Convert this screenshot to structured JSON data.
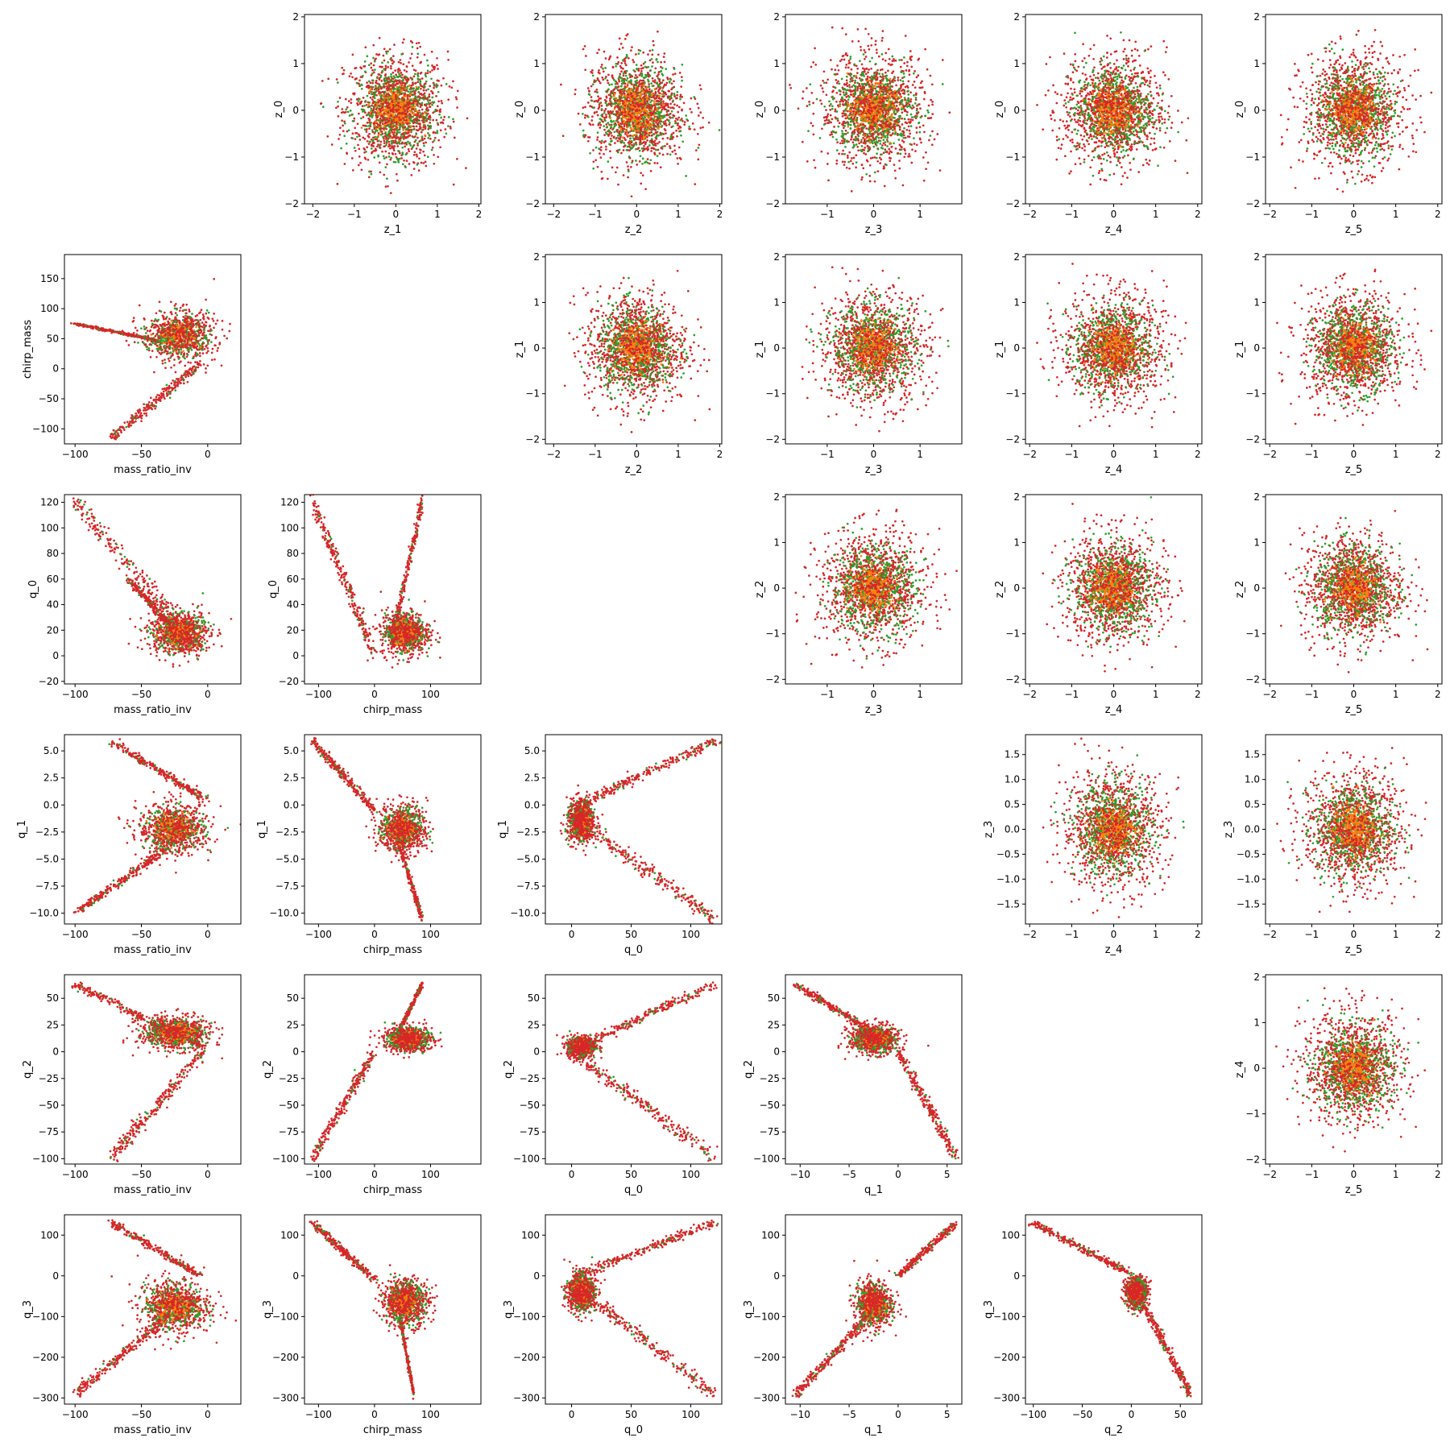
{
  "colors": {
    "red": "#d62728",
    "green": "#2ca02c",
    "orange": "#ff7f0e",
    "frame": "#000000"
  },
  "chart_data": [
    {
      "type": "scatter",
      "xlabel": "z_1",
      "ylabel": "z_0",
      "xticks": [
        "−2",
        "−1",
        "0",
        "1",
        "2"
      ],
      "yticks": [
        "−2",
        "−1",
        "0",
        "1",
        "2"
      ],
      "xlim": [
        -2.2,
        2.05
      ],
      "ylim": [
        -2.0,
        2.05
      ],
      "pattern": "gaussian",
      "spread": [
        0.62,
        0.62
      ],
      "series": [
        {
          "name": "",
          "color": "#d62728"
        },
        {
          "name": "",
          "color": "#2ca02c"
        },
        {
          "name": "",
          "color": "#ff7f0e"
        }
      ]
    },
    {
      "type": "scatter",
      "xlabel": "z_2",
      "ylabel": "z_0",
      "xticks": [
        "−2",
        "−1",
        "0",
        "1",
        "2"
      ],
      "yticks": [
        "−2",
        "−1",
        "0",
        "1",
        "2"
      ],
      "xlim": [
        -2.2,
        2.05
      ],
      "ylim": [
        -2.0,
        2.05
      ],
      "pattern": "gaussian",
      "spread": [
        0.62,
        0.62
      ]
    },
    {
      "type": "scatter",
      "xlabel": "z_3",
      "ylabel": "z_0",
      "xticks": [
        "−1",
        "0",
        "1"
      ],
      "yticks": [
        "−2",
        "−1",
        "0",
        "1",
        "2"
      ],
      "xlim": [
        -1.9,
        1.9
      ],
      "ylim": [
        -2.0,
        2.05
      ],
      "pattern": "gaussian",
      "spread": [
        0.6,
        0.62
      ]
    },
    {
      "type": "scatter",
      "xlabel": "z_4",
      "ylabel": "z_0",
      "xticks": [
        "−2",
        "−1",
        "0",
        "1",
        "2"
      ],
      "yticks": [
        "−2",
        "−1",
        "0",
        "1",
        "2"
      ],
      "xlim": [
        -2.1,
        2.1
      ],
      "ylim": [
        -2.0,
        2.05
      ],
      "pattern": "gaussian",
      "spread": [
        0.62,
        0.62
      ]
    },
    {
      "type": "scatter",
      "xlabel": "z_5",
      "ylabel": "z_0",
      "xticks": [
        "−2",
        "−1",
        "0",
        "1",
        "2"
      ],
      "yticks": [
        "−2",
        "−1",
        "0",
        "1",
        "2"
      ],
      "xlim": [
        -2.1,
        2.1
      ],
      "ylim": [
        -2.0,
        2.05
      ],
      "pattern": "gaussian",
      "spread": [
        0.62,
        0.62
      ]
    },
    {
      "type": "scatter",
      "xlabel": "mass_ratio_inv",
      "ylabel": "chirp_mass",
      "xticks": [
        "−100",
        "−50",
        "0"
      ],
      "yticks": [
        "−100",
        "−50",
        "0",
        "50",
        "100",
        "150"
      ],
      "xlim": [
        -108,
        25
      ],
      "ylim": [
        -125,
        190
      ],
      "pattern": "crowd",
      "center": [
        -22,
        55
      ],
      "spread": [
        14,
        22
      ],
      "arms": [
        {
          "from": [
            -5,
            10
          ],
          "to": [
            -72,
            -115
          ]
        },
        {
          "from": [
            -40,
            48
          ],
          "to": [
            -100,
            75
          ]
        }
      ]
    },
    {
      "type": "scatter",
      "xlabel": "z_2",
      "ylabel": "z_1",
      "xticks": [
        "−2",
        "−1",
        "0",
        "1",
        "2"
      ],
      "yticks": [
        "−2",
        "−1",
        "0",
        "1",
        "2"
      ],
      "xlim": [
        -2.2,
        2.05
      ],
      "ylim": [
        -2.1,
        2.05
      ],
      "pattern": "gaussian",
      "spread": [
        0.62,
        0.62
      ]
    },
    {
      "type": "scatter",
      "xlabel": "z_3",
      "ylabel": "z_1",
      "xticks": [
        "−1",
        "0",
        "1"
      ],
      "yticks": [
        "−2",
        "−1",
        "0",
        "1",
        "2"
      ],
      "xlim": [
        -1.9,
        1.9
      ],
      "ylim": [
        -2.1,
        2.05
      ],
      "pattern": "gaussian",
      "spread": [
        0.6,
        0.62
      ]
    },
    {
      "type": "scatter",
      "xlabel": "z_4",
      "ylabel": "z_1",
      "xticks": [
        "−2",
        "−1",
        "0",
        "1",
        "2"
      ],
      "yticks": [
        "−2",
        "−1",
        "0",
        "1",
        "2"
      ],
      "xlim": [
        -2.1,
        2.1
      ],
      "ylim": [
        -2.1,
        2.05
      ],
      "pattern": "gaussian",
      "spread": [
        0.62,
        0.62
      ]
    },
    {
      "type": "scatter",
      "xlabel": "z_5",
      "ylabel": "z_1",
      "xticks": [
        "−2",
        "−1",
        "0",
        "1",
        "2"
      ],
      "yticks": [
        "−2",
        "−1",
        "0",
        "1",
        "2"
      ],
      "xlim": [
        -2.1,
        2.1
      ],
      "ylim": [
        -2.1,
        2.05
      ],
      "pattern": "gaussian",
      "spread": [
        0.62,
        0.62
      ]
    },
    {
      "type": "scatter",
      "xlabel": "mass_ratio_inv",
      "ylabel": "q_0",
      "xticks": [
        "−100",
        "−50",
        "0"
      ],
      "yticks": [
        "−20",
        "0",
        "20",
        "40",
        "60",
        "80",
        "100",
        "120"
      ],
      "xlim": [
        -108,
        25
      ],
      "ylim": [
        -22,
        126
      ],
      "pattern": "crowd",
      "center": [
        -22,
        18
      ],
      "spread": [
        12,
        9
      ],
      "arms": [
        {
          "from": [
            -5,
            5
          ],
          "to": [
            -100,
            120
          ]
        },
        {
          "from": [
            -20,
            15
          ],
          "to": [
            -60,
            60
          ]
        }
      ]
    },
    {
      "type": "scatter",
      "xlabel": "chirp_mass",
      "ylabel": "q_0",
      "xticks": [
        "−100",
        "0",
        "100"
      ],
      "yticks": [
        "−20",
        "0",
        "20",
        "40",
        "60",
        "80",
        "100",
        "120"
      ],
      "xlim": [
        -125,
        190
      ],
      "ylim": [
        -22,
        126
      ],
      "pattern": "crowd",
      "center": [
        55,
        18
      ],
      "spread": [
        22,
        9
      ],
      "arms": [
        {
          "from": [
            0,
            2
          ],
          "to": [
            -110,
            120
          ]
        },
        {
          "from": [
            30,
            10
          ],
          "to": [
            85,
            120
          ]
        }
      ]
    },
    {
      "type": "scatter",
      "xlabel": "z_3",
      "ylabel": "z_2",
      "xticks": [
        "−1",
        "0",
        "1"
      ],
      "yticks": [
        "−2",
        "−1",
        "0",
        "1",
        "2"
      ],
      "xlim": [
        -1.9,
        1.9
      ],
      "ylim": [
        -2.1,
        2.05
      ],
      "pattern": "gaussian",
      "spread": [
        0.6,
        0.62
      ]
    },
    {
      "type": "scatter",
      "xlabel": "z_4",
      "ylabel": "z_2",
      "xticks": [
        "−2",
        "−1",
        "0",
        "1",
        "2"
      ],
      "yticks": [
        "−2",
        "−1",
        "0",
        "1",
        "2"
      ],
      "xlim": [
        -2.1,
        2.1
      ],
      "ylim": [
        -2.1,
        2.05
      ],
      "pattern": "gaussian",
      "spread": [
        0.62,
        0.62
      ]
    },
    {
      "type": "scatter",
      "xlabel": "z_5",
      "ylabel": "z_2",
      "xticks": [
        "−2",
        "−1",
        "0",
        "1",
        "2"
      ],
      "yticks": [
        "−2",
        "−1",
        "0",
        "1",
        "2"
      ],
      "xlim": [
        -2.1,
        2.1
      ],
      "ylim": [
        -2.1,
        2.05
      ],
      "pattern": "gaussian",
      "spread": [
        0.62,
        0.62
      ]
    },
    {
      "type": "scatter",
      "xlabel": "mass_ratio_inv",
      "ylabel": "q_1",
      "xticks": [
        "−100",
        "−50",
        "0"
      ],
      "yticks": [
        "−10.0",
        "−7.5",
        "−5.0",
        "−2.5",
        "0.0",
        "2.5",
        "5.0"
      ],
      "xlim": [
        -108,
        25
      ],
      "ylim": [
        -11,
        6.5
      ],
      "pattern": "crowd",
      "center": [
        -25,
        -2.2
      ],
      "spread": [
        14,
        1.2
      ],
      "arms": [
        {
          "from": [
            -2,
            0.5
          ],
          "to": [
            -72,
            5.9
          ]
        },
        {
          "from": [
            -30,
            -4
          ],
          "to": [
            -100,
            -10
          ]
        }
      ]
    },
    {
      "type": "scatter",
      "xlabel": "chirp_mass",
      "ylabel": "q_1",
      "xticks": [
        "−100",
        "0",
        "100"
      ],
      "yticks": [
        "−10.0",
        "−7.5",
        "−5.0",
        "−2.5",
        "0.0",
        "2.5",
        "5.0"
      ],
      "xlim": [
        -125,
        190
      ],
      "ylim": [
        -11,
        6.5
      ],
      "pattern": "crowd",
      "center": [
        50,
        -2.2
      ],
      "spread": [
        22,
        1.2
      ],
      "arms": [
        {
          "from": [
            0,
            -0.5
          ],
          "to": [
            -110,
            5.9
          ]
        },
        {
          "from": [
            40,
            -3
          ],
          "to": [
            85,
            -10.5
          ]
        }
      ]
    },
    {
      "type": "scatter",
      "xlabel": "q_0",
      "ylabel": "q_1",
      "xticks": [
        "0",
        "50",
        "100"
      ],
      "yticks": [
        "−10.0",
        "−7.5",
        "−5.0",
        "−2.5",
        "0.0",
        "2.5",
        "5.0"
      ],
      "xlim": [
        -22,
        126
      ],
      "ylim": [
        -11,
        6.5
      ],
      "pattern": "crowd",
      "center": [
        8,
        -1.5
      ],
      "spread": [
        6,
        1.0
      ],
      "arms": [
        {
          "from": [
            5,
            0
          ],
          "to": [
            120,
            5.9
          ]
        },
        {
          "from": [
            5,
            -1.5
          ],
          "to": [
            120,
            -10.5
          ]
        }
      ]
    },
    {
      "type": "scatter",
      "xlabel": "z_4",
      "ylabel": "z_3",
      "xticks": [
        "−2",
        "−1",
        "0",
        "1",
        "2"
      ],
      "yticks": [
        "−1.5",
        "−1.0",
        "−0.5",
        "0.0",
        "0.5",
        "1.0",
        "1.5"
      ],
      "xlim": [
        -2.1,
        2.1
      ],
      "ylim": [
        -1.9,
        1.9
      ],
      "pattern": "gaussian",
      "spread": [
        0.62,
        0.6
      ]
    },
    {
      "type": "scatter",
      "xlabel": "z_5",
      "ylabel": "z_3",
      "xticks": [
        "−2",
        "−1",
        "0",
        "1",
        "2"
      ],
      "yticks": [
        "−1.5",
        "−1.0",
        "−0.5",
        "0.0",
        "0.5",
        "1.0",
        "1.5"
      ],
      "xlim": [
        -2.1,
        2.1
      ],
      "ylim": [
        -1.9,
        1.9
      ],
      "pattern": "gaussian",
      "spread": [
        0.62,
        0.6
      ]
    },
    {
      "type": "scatter",
      "xlabel": "mass_ratio_inv",
      "ylabel": "q_2",
      "xticks": [
        "−100",
        "−50",
        "0"
      ],
      "yticks": [
        "−100",
        "−75",
        "−50",
        "−25",
        "0",
        "25",
        "50"
      ],
      "xlim": [
        -108,
        25
      ],
      "ylim": [
        -105,
        72
      ],
      "pattern": "crowd",
      "center": [
        -25,
        18
      ],
      "spread": [
        14,
        8
      ],
      "arms": [
        {
          "from": [
            -5,
            5
          ],
          "to": [
            -100,
            63
          ]
        },
        {
          "from": [
            -3,
            0
          ],
          "to": [
            -72,
            -98
          ]
        }
      ]
    },
    {
      "type": "scatter",
      "xlabel": "chirp_mass",
      "ylabel": "q_2",
      "xticks": [
        "−100",
        "0",
        "100"
      ],
      "yticks": [
        "−100",
        "−75",
        "−50",
        "−25",
        "0",
        "25",
        "50"
      ],
      "xlim": [
        -125,
        190
      ],
      "ylim": [
        -105,
        72
      ],
      "pattern": "crowd",
      "center": [
        60,
        12
      ],
      "spread": [
        22,
        6
      ],
      "arms": [
        {
          "from": [
            0,
            0
          ],
          "to": [
            -110,
            -98
          ]
        },
        {
          "from": [
            40,
            15
          ],
          "to": [
            85,
            63
          ]
        }
      ]
    },
    {
      "type": "scatter",
      "xlabel": "q_0",
      "ylabel": "q_2",
      "xticks": [
        "0",
        "50",
        "100"
      ],
      "yticks": [
        "−100",
        "−75",
        "−50",
        "−25",
        "0",
        "25",
        "50"
      ],
      "xlim": [
        -22,
        126
      ],
      "ylim": [
        -105,
        72
      ],
      "pattern": "crowd",
      "center": [
        8,
        5
      ],
      "spread": [
        6,
        5
      ],
      "arms": [
        {
          "from": [
            2,
            3
          ],
          "to": [
            120,
            63
          ]
        },
        {
          "from": [
            2,
            -2
          ],
          "to": [
            120,
            -98
          ]
        }
      ]
    },
    {
      "type": "scatter",
      "xlabel": "q_1",
      "ylabel": "q_2",
      "xticks": [
        "−10",
        "−5",
        "0",
        "5"
      ],
      "yticks": [
        "−100",
        "−75",
        "−50",
        "−25",
        "0",
        "25",
        "50"
      ],
      "xlim": [
        -11.5,
        6.5
      ],
      "ylim": [
        -105,
        72
      ],
      "pattern": "crowd",
      "center": [
        -2.5,
        12
      ],
      "spread": [
        1.3,
        7
      ],
      "arms": [
        {
          "from": [
            -2,
            15
          ],
          "to": [
            -10.5,
            63
          ]
        },
        {
          "from": [
            0,
            0
          ],
          "to": [
            5.9,
            -98
          ]
        }
      ]
    },
    {
      "type": "scatter",
      "xlabel": "z_5",
      "ylabel": "z_4",
      "xticks": [
        "−2",
        "−1",
        "0",
        "1",
        "2"
      ],
      "yticks": [
        "−2",
        "−1",
        "0",
        "1",
        "2"
      ],
      "xlim": [
        -2.1,
        2.1
      ],
      "ylim": [
        -2.1,
        2.05
      ],
      "pattern": "gaussian",
      "spread": [
        0.62,
        0.62
      ]
    },
    {
      "type": "scatter",
      "xlabel": "mass_ratio_inv",
      "ylabel": "q_3",
      "xticks": [
        "−100",
        "−50",
        "0"
      ],
      "yticks": [
        "−300",
        "−200",
        "−100",
        "0",
        "100"
      ],
      "xlim": [
        -108,
        25
      ],
      "ylim": [
        -315,
        150
      ],
      "pattern": "crowd",
      "center": [
        -25,
        -75
      ],
      "spread": [
        14,
        35
      ],
      "arms": [
        {
          "from": [
            -5,
            0
          ],
          "to": [
            -72,
            130
          ]
        },
        {
          "from": [
            -30,
            -100
          ],
          "to": [
            -100,
            -290
          ]
        }
      ]
    },
    {
      "type": "scatter",
      "xlabel": "chirp_mass",
      "ylabel": "q_3",
      "xticks": [
        "−100",
        "0",
        "100"
      ],
      "yticks": [
        "−300",
        "−200",
        "−100",
        "0",
        "100"
      ],
      "xlim": [
        -125,
        190
      ],
      "ylim": [
        -315,
        150
      ],
      "pattern": "crowd",
      "center": [
        55,
        -65
      ],
      "spread": [
        22,
        30
      ],
      "arms": [
        {
          "from": [
            0,
            -10
          ],
          "to": [
            -110,
            130
          ]
        },
        {
          "from": [
            45,
            -100
          ],
          "to": [
            70,
            -290
          ]
        }
      ]
    },
    {
      "type": "scatter",
      "xlabel": "q_0",
      "ylabel": "q_3",
      "xticks": [
        "0",
        "50",
        "100"
      ],
      "yticks": [
        "−300",
        "−200",
        "−100",
        "0",
        "100"
      ],
      "xlim": [
        -22,
        126
      ],
      "ylim": [
        -315,
        150
      ],
      "pattern": "crowd",
      "center": [
        8,
        -40
      ],
      "spread": [
        6,
        25
      ],
      "arms": [
        {
          "from": [
            3,
            0
          ],
          "to": [
            120,
            130
          ]
        },
        {
          "from": [
            5,
            -30
          ],
          "to": [
            120,
            -290
          ]
        }
      ]
    },
    {
      "type": "scatter",
      "xlabel": "q_1",
      "ylabel": "q_3",
      "xticks": [
        "−10",
        "−5",
        "0",
        "5"
      ],
      "yticks": [
        "−300",
        "−200",
        "−100",
        "0",
        "100"
      ],
      "xlim": [
        -11.5,
        6.5
      ],
      "ylim": [
        -315,
        150
      ],
      "pattern": "crowd",
      "center": [
        -2.5,
        -70
      ],
      "spread": [
        1.0,
        30
      ],
      "arms": [
        {
          "from": [
            -3,
            -100
          ],
          "to": [
            -10.5,
            -290
          ]
        },
        {
          "from": [
            0,
            0
          ],
          "to": [
            5.9,
            130
          ]
        }
      ]
    },
    {
      "type": "scatter",
      "xlabel": "q_2",
      "ylabel": "q_3",
      "xticks": [
        "−100",
        "−50",
        "0",
        "50"
      ],
      "yticks": [
        "−300",
        "−200",
        "−100",
        "0",
        "100"
      ],
      "xlim": [
        -108,
        72
      ],
      "ylim": [
        -315,
        150
      ],
      "pattern": "crowd",
      "center": [
        5,
        -40
      ],
      "spread": [
        6,
        20
      ],
      "arms": [
        {
          "from": [
            -5,
            10
          ],
          "to": [
            -100,
            130
          ]
        },
        {
          "from": [
            10,
            -60
          ],
          "to": [
            60,
            -290
          ]
        }
      ]
    }
  ]
}
